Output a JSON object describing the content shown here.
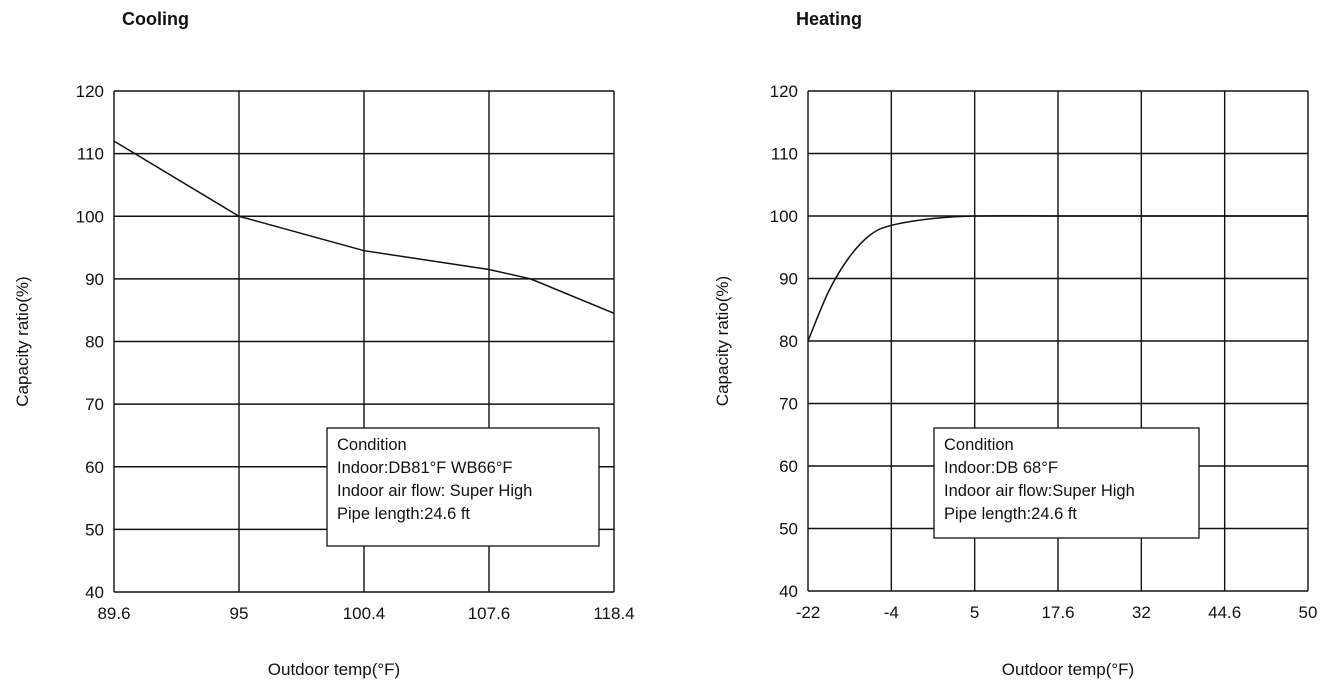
{
  "chart_data": [
    {
      "type": "line",
      "title": "Cooling",
      "xlabel": "Outdoor temp(°F)",
      "ylabel": "Capacity ratio(%)",
      "x_tick_labels": [
        "89.6",
        "95",
        "100.4",
        "107.6",
        "118.4"
      ],
      "y_ticks": [
        40,
        50,
        60,
        70,
        80,
        90,
        100,
        110,
        120
      ],
      "ylim": [
        40,
        120
      ],
      "grid": true,
      "series": [
        {
          "x": [
            "89.6",
            "95",
            "100.4",
            "107.6",
            "111.2",
            "118.4"
          ],
          "y": [
            112,
            100,
            94.5,
            91.5,
            90,
            84.5
          ]
        }
      ],
      "condition": [
        "Condition",
        "Indoor:DB81°F  WB66°F",
        "Indoor air flow: Super High",
        "Pipe length:24.6 ft"
      ]
    },
    {
      "type": "line",
      "title": "Heating",
      "xlabel": "Outdoor temp(°F)",
      "ylabel": "Capacity ratio(%)",
      "x_tick_labels": [
        "-22",
        "-4",
        "5",
        "17.6",
        "32",
        "44.6",
        "50"
      ],
      "y_ticks": [
        40,
        50,
        60,
        70,
        80,
        90,
        100,
        110,
        120
      ],
      "ylim": [
        40,
        120
      ],
      "grid": true,
      "series": [
        {
          "x": [
            "-22",
            "-17.5",
            "-13",
            "-8.5",
            "-4",
            "0.5",
            "5",
            "17.6",
            "32",
            "44.6",
            "50"
          ],
          "y": [
            80,
            88,
            93.5,
            97,
            98.5,
            99.6,
            100,
            100,
            100,
            100,
            100
          ]
        }
      ],
      "condition": [
        "Condition",
        "Indoor:DB 68°F",
        "Indoor air flow:Super High",
        "Pipe length:24.6 ft"
      ]
    }
  ]
}
